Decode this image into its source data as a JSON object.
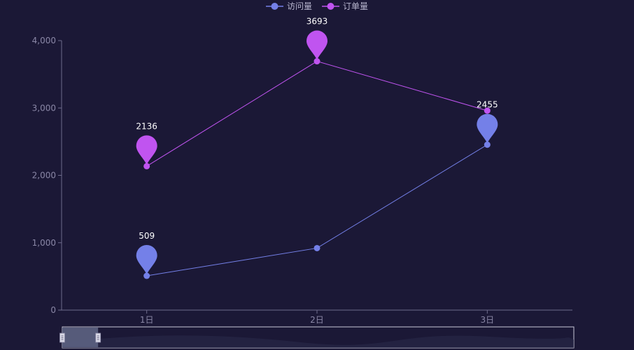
{
  "chart_data": {
    "type": "line",
    "categories": [
      "1日",
      "2日",
      "3日"
    ],
    "ylim": [
      0,
      4000
    ],
    "yticks": [
      "0",
      "1,000",
      "2,000",
      "3,000",
      "4,000"
    ],
    "ytick_values": [
      0,
      1000,
      2000,
      3000,
      4000
    ],
    "legend_position": "top-center",
    "grid": false,
    "series": [
      {
        "name": "访问量",
        "values": [
          509,
          920,
          2455
        ],
        "color": "#7480e8",
        "markers": [
          {
            "index": 0,
            "label": "509"
          },
          {
            "index": 2,
            "label": "2455"
          }
        ]
      },
      {
        "name": "订单量",
        "values": [
          2136,
          3693,
          2960
        ],
        "color": "#c054f0",
        "markers": [
          {
            "index": 0,
            "label": "2136"
          },
          {
            "index": 1,
            "label": "3693"
          }
        ]
      }
    ],
    "datazoom": {
      "start": 0,
      "end": 7
    }
  }
}
